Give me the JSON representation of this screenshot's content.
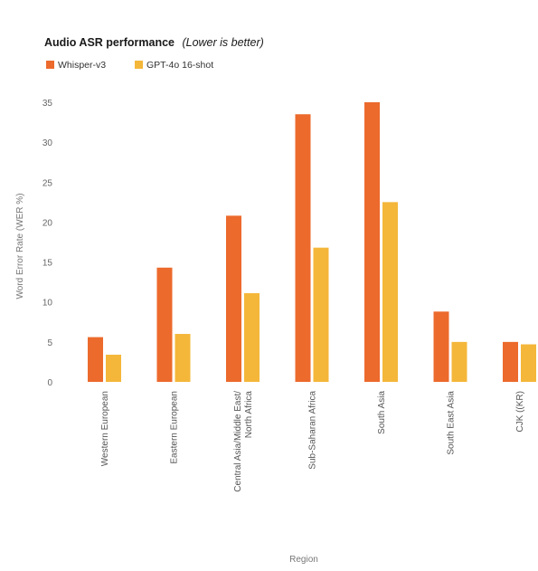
{
  "chart_data": {
    "type": "bar",
    "title": "Audio ASR performance",
    "title_note": "(Lower is better)",
    "xlabel": "Region",
    "ylabel": "Word Error Rate (WER %)",
    "ylim": [
      0,
      35
    ],
    "yticks": [
      0,
      5,
      10,
      15,
      20,
      25,
      30,
      35
    ],
    "grid": false,
    "legend_position": "top-left",
    "categories": [
      [
        "Western European"
      ],
      [
        "Eastern European"
      ],
      [
        "Central Asia/Middle East/",
        "North Africa"
      ],
      [
        "Sub-Saharan Africa"
      ],
      [
        "South Asia"
      ],
      [
        "South East Asia"
      ],
      [
        "CJK ((KR)"
      ]
    ],
    "series": [
      {
        "name": "Whisper-v3",
        "color": "#ec6a2c",
        "values": [
          5.6,
          14.3,
          20.8,
          33.5,
          35.0,
          8.8,
          5.0
        ]
      },
      {
        "name": "GPT-4o 16-shot",
        "color": "#f4b73a",
        "values": [
          3.4,
          6.0,
          11.1,
          16.8,
          22.5,
          5.0,
          4.7
        ]
      }
    ]
  }
}
